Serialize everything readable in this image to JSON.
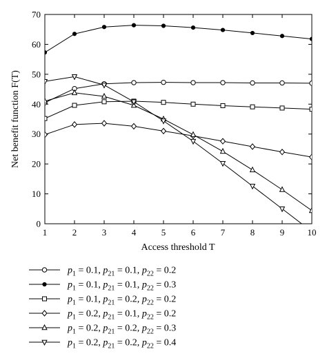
{
  "chart_data": {
    "type": "line",
    "xlabel": "Access threshold T",
    "ylabel": "Net benefit function F(T)",
    "xlim": [
      1,
      10
    ],
    "ylim": [
      0,
      70
    ],
    "x": [
      1,
      2,
      3,
      4,
      5,
      6,
      7,
      8,
      9,
      10
    ],
    "xticks": [
      "1",
      "2",
      "3",
      "4",
      "5",
      "6",
      "7",
      "8",
      "9",
      "10"
    ],
    "yticks": [
      "0",
      "10",
      "20",
      "30",
      "40",
      "50",
      "60",
      "70"
    ],
    "grid": false,
    "legend_position": "below",
    "series": [
      {
        "name": "p1 = 0.1, p21 = 0.1, p22 = 0.2",
        "marker": "circle",
        "legend": {
          "p1": "0.1",
          "p21": "0.1",
          "p22": "0.2"
        },
        "values": [
          40.5,
          45.2,
          46.8,
          47.2,
          47.3,
          47.2,
          47.2,
          47.1,
          47.1,
          47.0
        ]
      },
      {
        "name": "p1 = 0.1, p21 = 0.1, p22 = 0.3",
        "marker": "dot",
        "legend": {
          "p1": "0.1",
          "p21": "0.1",
          "p22": "0.3"
        },
        "values": [
          57.3,
          63.5,
          65.8,
          66.4,
          66.2,
          65.6,
          64.8,
          63.8,
          62.8,
          61.8
        ]
      },
      {
        "name": "p1 = 0.1, p21 = 0.2, p22 = 0.2",
        "marker": "square",
        "legend": {
          "p1": "0.1",
          "p21": "0.2",
          "p22": "0.2"
        },
        "values": [
          35.2,
          39.6,
          40.8,
          41.0,
          40.6,
          40.0,
          39.5,
          39.1,
          38.7,
          38.3
        ]
      },
      {
        "name": "p1 = 0.2, p21 = 0.1, p22 = 0.2",
        "marker": "diamond",
        "legend": {
          "p1": "0.2",
          "p21": "0.1",
          "p22": "0.2"
        },
        "values": [
          29.8,
          33.2,
          33.6,
          32.6,
          31.0,
          29.4,
          27.6,
          25.8,
          24.0,
          22.3
        ]
      },
      {
        "name": "p1 = 0.2, p21 = 0.2, p22 = 0.3",
        "marker": "triangle-up",
        "legend": {
          "p1": "0.2",
          "p21": "0.2",
          "p22": "0.3"
        },
        "values": [
          41.0,
          43.8,
          42.6,
          39.6,
          35.0,
          29.8,
          24.2,
          18.0,
          11.4,
          4.4
        ]
      },
      {
        "name": "p1 = 0.2, p21 = 0.2, p22 = 0.4",
        "marker": "triangle-down",
        "legend": {
          "p1": "0.2",
          "p21": "0.2",
          "p22": "0.4"
        },
        "values": [
          47.6,
          49.2,
          46.4,
          40.8,
          34.4,
          27.6,
          20.2,
          12.6,
          5.0,
          -2.6
        ]
      }
    ]
  }
}
